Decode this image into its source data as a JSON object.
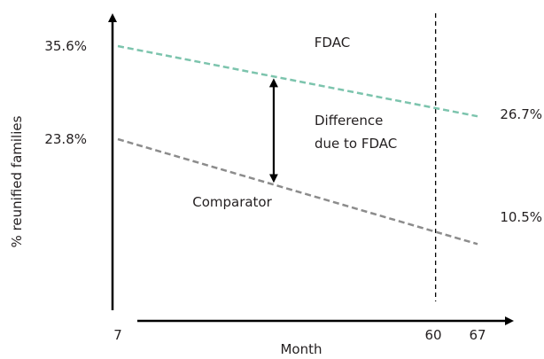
{
  "chart_data": {
    "type": "line",
    "xlabel": "Month",
    "ylabel": "% reunified families",
    "x_ticks": [
      "7",
      "60",
      "67"
    ],
    "xlim": [
      7,
      67
    ],
    "series": [
      {
        "name": "FDAC",
        "color": "#7cc4ad",
        "x": [
          7,
          67
        ],
        "y": [
          35.6,
          26.7
        ],
        "start_label": "35.6%",
        "end_label": "26.7%"
      },
      {
        "name": "Comparator",
        "color": "#8c8c8c",
        "x": [
          7,
          67
        ],
        "y": [
          23.8,
          10.5
        ],
        "start_label": "23.8%",
        "end_label": "10.5%"
      }
    ],
    "reference_line_x": 60,
    "annotation": {
      "x": 33,
      "lines": [
        "Difference",
        "due to FDAC"
      ]
    }
  }
}
